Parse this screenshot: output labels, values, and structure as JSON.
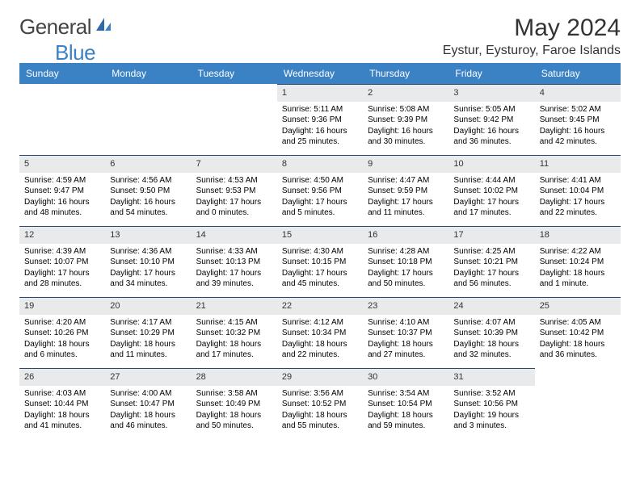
{
  "logo": {
    "text1": "General",
    "text2": "Blue"
  },
  "title": "May 2024",
  "location": "Eystur, Eysturoy, Faroe Islands",
  "colors": {
    "header_bg": "#3b82c4",
    "header_fg": "#ffffff",
    "daynum_bg": "#e8eaec",
    "daynum_border": "#2c4a6b",
    "text": "#000000",
    "logo_gray": "#444444",
    "logo_blue": "#3b82c4"
  },
  "weekdays": [
    "Sunday",
    "Monday",
    "Tuesday",
    "Wednesday",
    "Thursday",
    "Friday",
    "Saturday"
  ],
  "weeks": [
    [
      null,
      null,
      null,
      {
        "num": "1",
        "sunrise": "5:11 AM",
        "sunset": "9:36 PM",
        "daylight": "16 hours and 25 minutes."
      },
      {
        "num": "2",
        "sunrise": "5:08 AM",
        "sunset": "9:39 PM",
        "daylight": "16 hours and 30 minutes."
      },
      {
        "num": "3",
        "sunrise": "5:05 AM",
        "sunset": "9:42 PM",
        "daylight": "16 hours and 36 minutes."
      },
      {
        "num": "4",
        "sunrise": "5:02 AM",
        "sunset": "9:45 PM",
        "daylight": "16 hours and 42 minutes."
      }
    ],
    [
      {
        "num": "5",
        "sunrise": "4:59 AM",
        "sunset": "9:47 PM",
        "daylight": "16 hours and 48 minutes."
      },
      {
        "num": "6",
        "sunrise": "4:56 AM",
        "sunset": "9:50 PM",
        "daylight": "16 hours and 54 minutes."
      },
      {
        "num": "7",
        "sunrise": "4:53 AM",
        "sunset": "9:53 PM",
        "daylight": "17 hours and 0 minutes."
      },
      {
        "num": "8",
        "sunrise": "4:50 AM",
        "sunset": "9:56 PM",
        "daylight": "17 hours and 5 minutes."
      },
      {
        "num": "9",
        "sunrise": "4:47 AM",
        "sunset": "9:59 PM",
        "daylight": "17 hours and 11 minutes."
      },
      {
        "num": "10",
        "sunrise": "4:44 AM",
        "sunset": "10:02 PM",
        "daylight": "17 hours and 17 minutes."
      },
      {
        "num": "11",
        "sunrise": "4:41 AM",
        "sunset": "10:04 PM",
        "daylight": "17 hours and 22 minutes."
      }
    ],
    [
      {
        "num": "12",
        "sunrise": "4:39 AM",
        "sunset": "10:07 PM",
        "daylight": "17 hours and 28 minutes."
      },
      {
        "num": "13",
        "sunrise": "4:36 AM",
        "sunset": "10:10 PM",
        "daylight": "17 hours and 34 minutes."
      },
      {
        "num": "14",
        "sunrise": "4:33 AM",
        "sunset": "10:13 PM",
        "daylight": "17 hours and 39 minutes."
      },
      {
        "num": "15",
        "sunrise": "4:30 AM",
        "sunset": "10:15 PM",
        "daylight": "17 hours and 45 minutes."
      },
      {
        "num": "16",
        "sunrise": "4:28 AM",
        "sunset": "10:18 PM",
        "daylight": "17 hours and 50 minutes."
      },
      {
        "num": "17",
        "sunrise": "4:25 AM",
        "sunset": "10:21 PM",
        "daylight": "17 hours and 56 minutes."
      },
      {
        "num": "18",
        "sunrise": "4:22 AM",
        "sunset": "10:24 PM",
        "daylight": "18 hours and 1 minute."
      }
    ],
    [
      {
        "num": "19",
        "sunrise": "4:20 AM",
        "sunset": "10:26 PM",
        "daylight": "18 hours and 6 minutes."
      },
      {
        "num": "20",
        "sunrise": "4:17 AM",
        "sunset": "10:29 PM",
        "daylight": "18 hours and 11 minutes."
      },
      {
        "num": "21",
        "sunrise": "4:15 AM",
        "sunset": "10:32 PM",
        "daylight": "18 hours and 17 minutes."
      },
      {
        "num": "22",
        "sunrise": "4:12 AM",
        "sunset": "10:34 PM",
        "daylight": "18 hours and 22 minutes."
      },
      {
        "num": "23",
        "sunrise": "4:10 AM",
        "sunset": "10:37 PM",
        "daylight": "18 hours and 27 minutes."
      },
      {
        "num": "24",
        "sunrise": "4:07 AM",
        "sunset": "10:39 PM",
        "daylight": "18 hours and 32 minutes."
      },
      {
        "num": "25",
        "sunrise": "4:05 AM",
        "sunset": "10:42 PM",
        "daylight": "18 hours and 36 minutes."
      }
    ],
    [
      {
        "num": "26",
        "sunrise": "4:03 AM",
        "sunset": "10:44 PM",
        "daylight": "18 hours and 41 minutes."
      },
      {
        "num": "27",
        "sunrise": "4:00 AM",
        "sunset": "10:47 PM",
        "daylight": "18 hours and 46 minutes."
      },
      {
        "num": "28",
        "sunrise": "3:58 AM",
        "sunset": "10:49 PM",
        "daylight": "18 hours and 50 minutes."
      },
      {
        "num": "29",
        "sunrise": "3:56 AM",
        "sunset": "10:52 PM",
        "daylight": "18 hours and 55 minutes."
      },
      {
        "num": "30",
        "sunrise": "3:54 AM",
        "sunset": "10:54 PM",
        "daylight": "18 hours and 59 minutes."
      },
      {
        "num": "31",
        "sunrise": "3:52 AM",
        "sunset": "10:56 PM",
        "daylight": "19 hours and 3 minutes."
      },
      null
    ]
  ],
  "labels": {
    "sunrise": "Sunrise:",
    "sunset": "Sunset:",
    "daylight": "Daylight:"
  }
}
